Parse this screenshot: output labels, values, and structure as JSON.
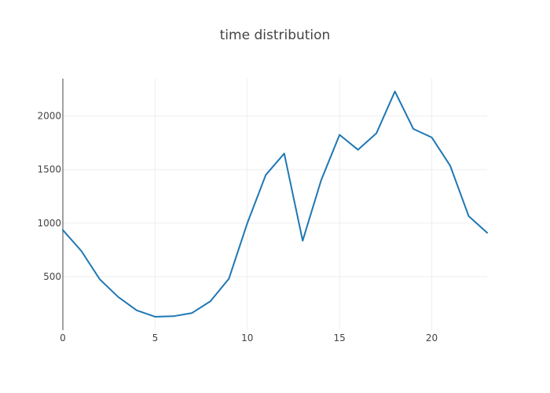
{
  "chart_data": {
    "type": "line",
    "title": "time distribution",
    "xlabel": "",
    "ylabel": "",
    "x": [
      0,
      1,
      2,
      3,
      4,
      5,
      6,
      7,
      8,
      9,
      10,
      11,
      12,
      13,
      14,
      15,
      16,
      17,
      18,
      19,
      20,
      21,
      22,
      23
    ],
    "series": [
      {
        "values": [
          935,
          740,
          475,
          310,
          185,
          125,
          130,
          160,
          270,
          480,
          1000,
          1450,
          1650,
          835,
          1400,
          1825,
          1685,
          1840,
          2230,
          1880,
          1800,
          1535,
          1065,
          910
        ],
        "color": "#1f77b4"
      }
    ],
    "xlim": [
      0,
      23
    ],
    "ylim": [
      0,
      2350
    ],
    "xticks": [
      0,
      5,
      10,
      15,
      20
    ],
    "yticks": [
      500,
      1000,
      1500,
      2000
    ],
    "grid": true,
    "legend": "none"
  }
}
